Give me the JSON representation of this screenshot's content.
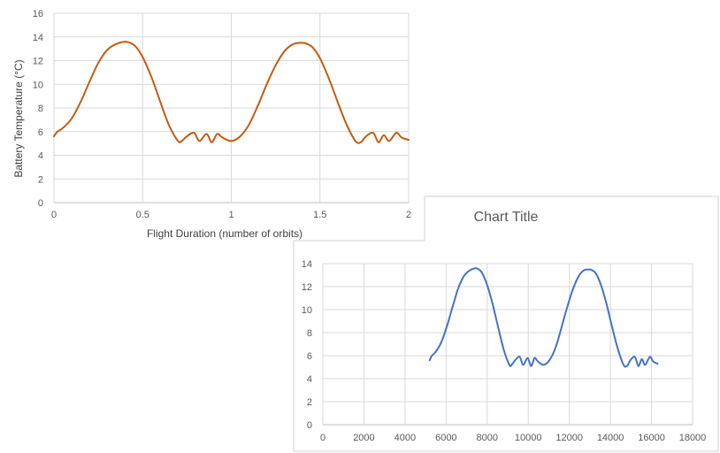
{
  "chart_data": [
    {
      "type": "line",
      "title": "",
      "xlabel": "Flight Duration (number of orbits)",
      "ylabel": "Battery Temperature (°C)",
      "xlim": [
        0,
        2
      ],
      "ylim": [
        0,
        16
      ],
      "x_ticks": [
        "0",
        "0.5",
        "1",
        "1.5",
        "2"
      ],
      "y_ticks": [
        "0",
        "2",
        "4",
        "6",
        "8",
        "10",
        "12",
        "14",
        "16"
      ],
      "grid": true,
      "legend": "none",
      "color": "#C55A11",
      "series": [
        {
          "x": [
            0,
            0.02,
            0.05,
            0.1,
            0.15,
            0.2,
            0.25,
            0.3,
            0.35,
            0.4,
            0.43,
            0.46,
            0.5,
            0.55,
            0.6,
            0.65,
            0.7,
            0.72,
            0.75,
            0.79,
            0.82,
            0.86,
            0.89,
            0.92,
            0.95,
            1.0,
            1.05,
            1.1,
            1.15,
            1.2,
            1.25,
            1.3,
            1.35,
            1.4,
            1.43,
            1.46,
            1.5,
            1.55,
            1.6,
            1.65,
            1.7,
            1.73,
            1.76,
            1.8,
            1.83,
            1.86,
            1.89,
            1.93,
            1.96,
            2.0
          ],
          "values": [
            5.6,
            6.0,
            6.3,
            7.1,
            8.5,
            10.2,
            11.8,
            12.9,
            13.4,
            13.6,
            13.5,
            13.2,
            12.3,
            10.6,
            8.5,
            6.5,
            5.2,
            5.2,
            5.6,
            5.9,
            5.2,
            5.8,
            5.1,
            5.8,
            5.5,
            5.2,
            5.6,
            6.6,
            8.2,
            10.0,
            11.6,
            12.8,
            13.4,
            13.5,
            13.4,
            13.1,
            12.2,
            10.5,
            8.5,
            6.6,
            5.2,
            5.1,
            5.6,
            5.9,
            5.1,
            5.7,
            5.2,
            5.9,
            5.5,
            5.3
          ]
        }
      ]
    },
    {
      "type": "line",
      "title": "Chart Title",
      "xlabel": "",
      "ylabel": "",
      "xlim": [
        0,
        18000
      ],
      "ylim": [
        0,
        14
      ],
      "x_ticks": [
        "0",
        "2000",
        "4000",
        "6000",
        "8000",
        "10000",
        "12000",
        "14000",
        "16000",
        "18000"
      ],
      "y_ticks": [
        "0",
        "2",
        "4",
        "6",
        "8",
        "10",
        "12",
        "14"
      ],
      "grid": true,
      "legend": "none",
      "color": "#4472C4",
      "series": [
        {
          "x": [
            5200,
            5310,
            5480,
            5750,
            6030,
            6310,
            6580,
            6860,
            7140,
            7420,
            7590,
            7750,
            7970,
            8250,
            8530,
            8810,
            9080,
            9190,
            9360,
            9580,
            9750,
            9970,
            10140,
            10310,
            10470,
            10750,
            11030,
            11310,
            11580,
            11860,
            12140,
            12420,
            12690,
            12970,
            13140,
            13310,
            13530,
            13810,
            14080,
            14360,
            14640,
            14810,
            14970,
            15190,
            15360,
            15530,
            15690,
            15920,
            16080,
            16300
          ],
          "values": [
            5.6,
            6.0,
            6.3,
            7.1,
            8.5,
            10.2,
            11.8,
            12.9,
            13.4,
            13.6,
            13.5,
            13.2,
            12.3,
            10.6,
            8.5,
            6.5,
            5.2,
            5.2,
            5.6,
            5.9,
            5.2,
            5.8,
            5.1,
            5.8,
            5.5,
            5.2,
            5.6,
            6.6,
            8.2,
            10.0,
            11.6,
            12.8,
            13.4,
            13.5,
            13.4,
            13.1,
            12.2,
            10.5,
            8.5,
            6.6,
            5.2,
            5.1,
            5.6,
            5.9,
            5.1,
            5.7,
            5.2,
            5.9,
            5.5,
            5.3
          ]
        }
      ]
    }
  ]
}
